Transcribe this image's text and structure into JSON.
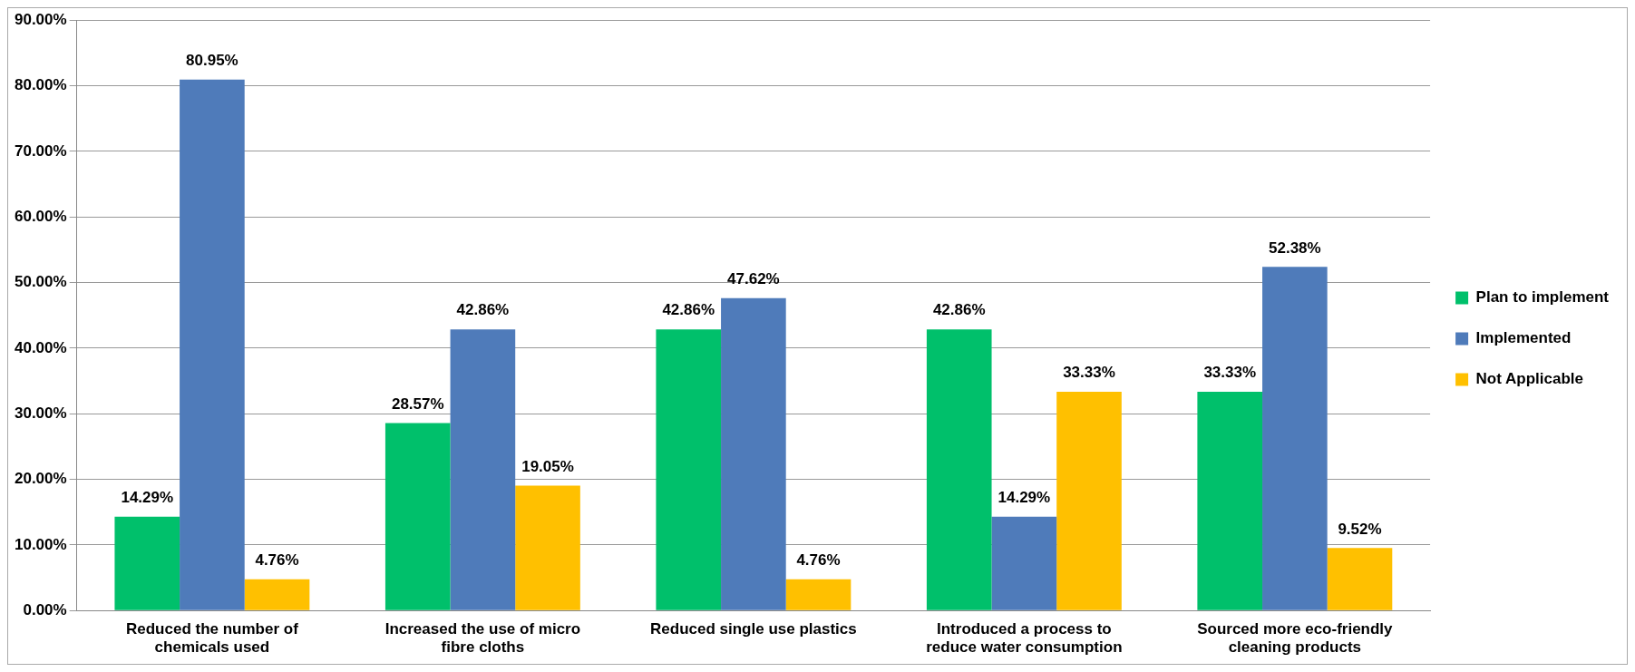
{
  "chart_data": {
    "type": "bar",
    "categories": [
      "Reduced the number of chemicals used",
      "Increased the use of micro fibre cloths",
      "Reduced single use plastics",
      "Introduced a process to reduce water consumption",
      "Sourced more eco-friendly cleaning products"
    ],
    "series": [
      {
        "name": "Plan to implement",
        "color": "#00c06b",
        "values": [
          14.29,
          28.57,
          42.86,
          42.86,
          33.33
        ],
        "value_labels": [
          "14.29%",
          "28.57%",
          "42.86%",
          "42.86%",
          "33.33%"
        ]
      },
      {
        "name": "Implemented",
        "color": "#4f7bba",
        "values": [
          80.95,
          42.86,
          47.62,
          14.29,
          52.38
        ],
        "value_labels": [
          "80.95%",
          "42.86%",
          "47.62%",
          "14.29%",
          "52.38%"
        ]
      },
      {
        "name": "Not Applicable",
        "color": "#ffc000",
        "values": [
          4.76,
          19.05,
          4.76,
          33.33,
          9.52
        ],
        "value_labels": [
          "4.76%",
          "19.05%",
          "4.76%",
          "33.33%",
          "9.52%"
        ]
      }
    ],
    "ylim": [
      0,
      90
    ],
    "yticks": [
      {
        "value": 0,
        "label": "0.00%"
      },
      {
        "value": 10,
        "label": "10.00%"
      },
      {
        "value": 20,
        "label": "20.00%"
      },
      {
        "value": 30,
        "label": "30.00%"
      },
      {
        "value": 40,
        "label": "40.00%"
      },
      {
        "value": 50,
        "label": "50.00%"
      },
      {
        "value": 60,
        "label": "60.00%"
      },
      {
        "value": 70,
        "label": "70.00%"
      },
      {
        "value": 80,
        "label": "80.00%"
      },
      {
        "value": 90,
        "label": "90.00%"
      }
    ],
    "grid": "y",
    "legend": "right"
  }
}
